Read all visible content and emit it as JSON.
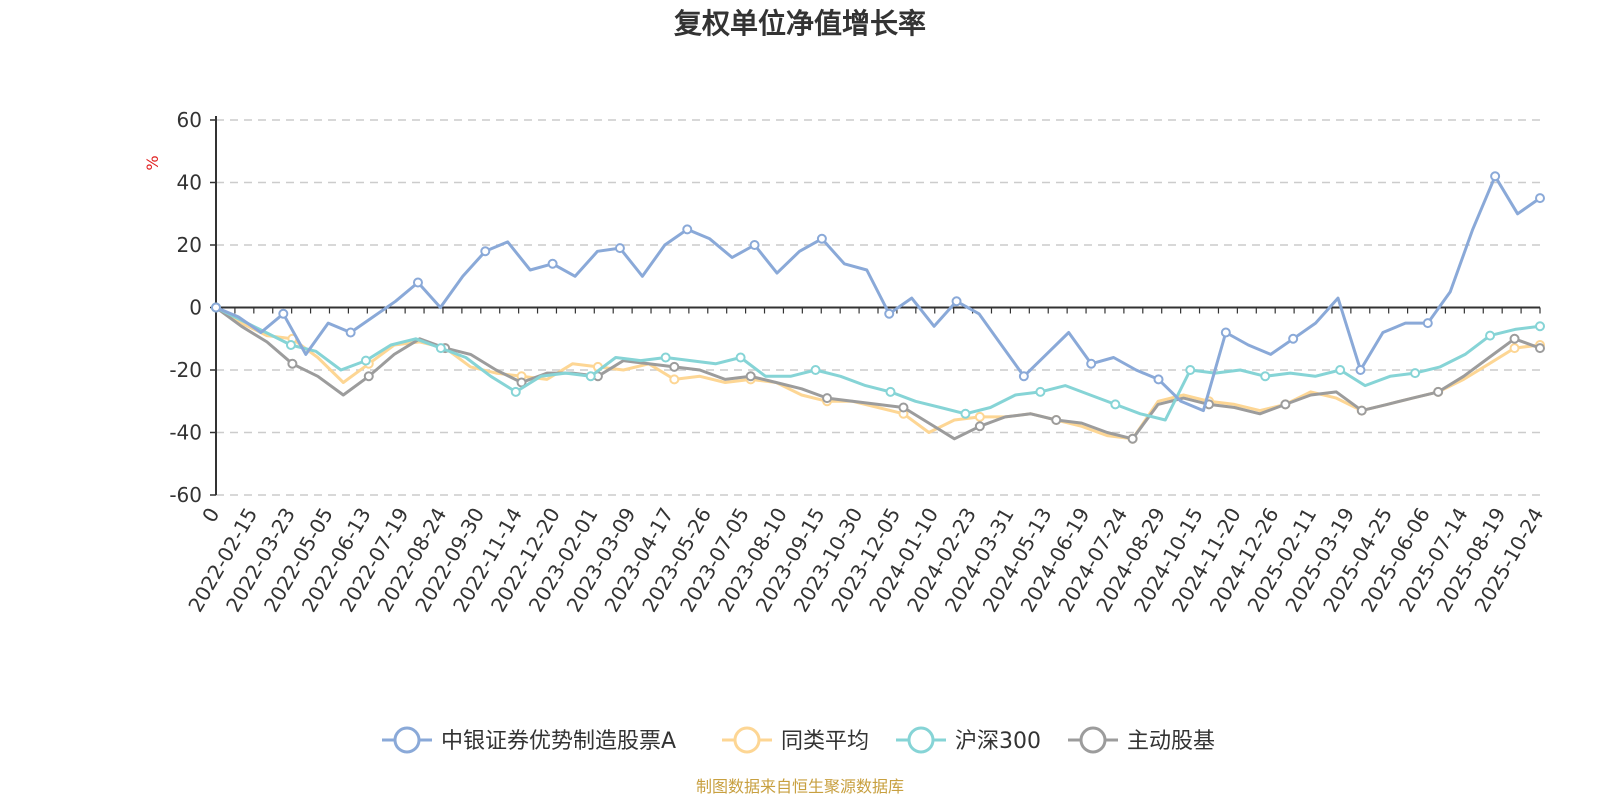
{
  "chart_data": {
    "type": "line",
    "title": "复权单位净值增长率",
    "ylabel": "%",
    "ylim": [
      -60,
      60
    ],
    "yticks": [
      60,
      40,
      20,
      0,
      -20,
      -40,
      -60
    ],
    "x_tick_labels": [
      "0",
      "2022-02-15",
      "2022-03-23",
      "2022-05-05",
      "2022-06-13",
      "2022-07-19",
      "2022-08-24",
      "2022-09-30",
      "2022-11-14",
      "2022-12-20",
      "2023-02-01",
      "2023-03-09",
      "2023-04-17",
      "2023-05-26",
      "2023-07-05",
      "2023-08-10",
      "2023-09-15",
      "2023-10-30",
      "2023-12-05",
      "2024-01-10",
      "2024-02-23",
      "2024-03-31",
      "2024-05-13",
      "2024-06-19",
      "2024-07-24",
      "2024-08-29",
      "2024-10-15",
      "2024-11-20",
      "2024-12-26",
      "2025-02-11",
      "2025-03-19",
      "2025-04-25",
      "2025-06-06",
      "2025-07-14",
      "2025-08-19",
      "2025-10-24"
    ],
    "series": [
      {
        "name": "中银证券优势制造股票A",
        "color": "#8aa9d8",
        "values": [
          0,
          -3,
          -8,
          -2,
          -15,
          -5,
          -8,
          -3,
          2,
          8,
          0,
          10,
          18,
          21,
          12,
          14,
          10,
          18,
          19,
          10,
          20,
          25,
          22,
          16,
          20,
          11,
          18,
          22,
          14,
          12,
          -2,
          3,
          -6,
          2,
          -2,
          -12,
          -22,
          -15,
          -8,
          -18,
          -16,
          -20,
          -23,
          -30,
          -33,
          -8,
          -12,
          -15,
          -10,
          -5,
          3,
          -20,
          -8,
          -5,
          -5,
          5,
          25,
          42,
          30,
          35
        ]
      },
      {
        "name": "同类平均",
        "color": "#fdd694",
        "values": [
          0,
          -5,
          -9,
          -10,
          -16,
          -24,
          -18,
          -12,
          -11,
          -13,
          -19,
          -21,
          -22,
          -23,
          -18,
          -19,
          -20,
          -18,
          -23,
          -22,
          -24,
          -23,
          -24,
          -28,
          -30,
          -30,
          -32,
          -34,
          -40,
          -36,
          -35,
          -35,
          -34,
          -36,
          -38,
          -41,
          -42,
          -30,
          -28,
          -30,
          -31,
          -33,
          -31,
          -27,
          -29,
          -33,
          -31,
          -29,
          -27,
          -23,
          -18,
          -13,
          -12
        ]
      },
      {
        "name": "沪深300",
        "color": "#86d4d6",
        "values": [
          0,
          -4,
          -8,
          -12,
          -14,
          -20,
          -17,
          -12,
          -10,
          -13,
          -16,
          -22,
          -27,
          -22,
          -21,
          -22,
          -16,
          -17,
          -16,
          -17,
          -18,
          -16,
          -22,
          -22,
          -20,
          -22,
          -25,
          -27,
          -30,
          -32,
          -34,
          -32,
          -28,
          -27,
          -25,
          -28,
          -31,
          -34,
          -36,
          -20,
          -21,
          -20,
          -22,
          -21,
          -22,
          -20,
          -25,
          -22,
          -21,
          -19,
          -15,
          -9,
          -7,
          -6
        ]
      },
      {
        "name": "主动股基",
        "color": "#9c9c9c",
        "values": [
          0,
          -6,
          -11,
          -18,
          -22,
          -28,
          -22,
          -15,
          -10,
          -13,
          -15,
          -20,
          -24,
          -21,
          -21,
          -22,
          -17,
          -18,
          -19,
          -20,
          -23,
          -22,
          -24,
          -26,
          -29,
          -30,
          -31,
          -32,
          -37,
          -42,
          -38,
          -35,
          -34,
          -36,
          -37,
          -40,
          -42,
          -31,
          -29,
          -31,
          -32,
          -34,
          -31,
          -28,
          -27,
          -33,
          -31,
          -29,
          -27,
          -22,
          -16,
          -10,
          -13
        ]
      }
    ]
  },
  "source_text": "制图数据来自恒生聚源数据库",
  "colors": {
    "unit": "#e02020",
    "source": "#c8a040",
    "grid": "#cccccc",
    "axis": "#333333"
  }
}
